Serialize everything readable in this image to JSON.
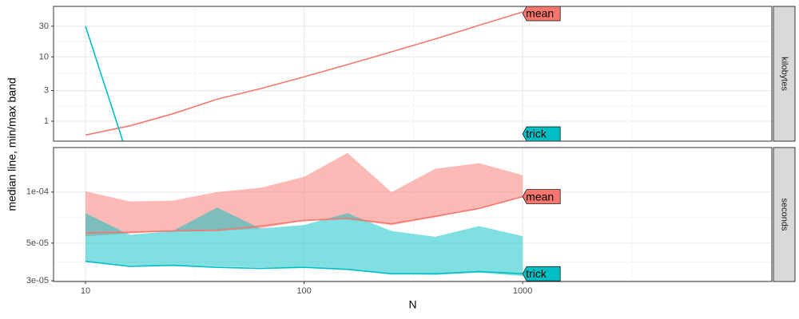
{
  "chart_data": [
    {
      "type": "line",
      "facet": "kilobytes",
      "log_x": true,
      "log_y": true,
      "grid": true,
      "y_label": "median line, min/max band",
      "x": [
        10,
        16,
        25,
        40,
        63,
        100,
        158,
        251,
        398,
        631,
        1000
      ],
      "xlim": [
        7.14,
        13800
      ],
      "xticks": [
        10,
        100,
        1000
      ],
      "ylim": [
        0.49,
        61
      ],
      "yticks": [
        1,
        3,
        10,
        30
      ],
      "series": [
        {
          "name": "mean",
          "color": "#F8766D",
          "values": [
            0.61,
            0.85,
            1.3,
            2.2,
            3.2,
            4.9,
            7.6,
            12,
            19,
            31,
            50
          ]
        },
        {
          "name": "trick",
          "color": "#00BFC4",
          "values": [
            30,
            0.22,
            0.22,
            0.22,
            0.22,
            0.22,
            0.22,
            0.22,
            0.22,
            0.22,
            0.22
          ]
        }
      ]
    },
    {
      "type": "band",
      "facet": "seconds",
      "log_x": true,
      "log_y": true,
      "grid": true,
      "x_label": "N",
      "x": [
        10,
        16,
        25,
        40,
        63,
        100,
        158,
        251,
        398,
        631,
        1000
      ],
      "xlim": [
        7.14,
        13800
      ],
      "xticks": [
        10,
        100,
        1000
      ],
      "ylim": [
        2.97e-05,
        0.000183
      ],
      "yticks": [
        {
          "value": 3e-05,
          "label": "3e-05"
        },
        {
          "value": 5e-05,
          "label": "5e-05"
        },
        {
          "value": 0.0001,
          "label": "1e-04"
        }
      ],
      "series": [
        {
          "name": "mean",
          "color": "#F8766D",
          "values": [
            5.75e-05,
            5.8e-05,
            5.9e-05,
            5.95e-05,
            6.3e-05,
            6.8e-05,
            7e-05,
            6.5e-05,
            7.2e-05,
            8e-05,
            9.4e-05
          ],
          "min": [
            5.5e-05,
            5.7e-05,
            5.9e-05,
            5.9e-05,
            6.1e-05,
            6.8e-05,
            6.9e-05,
            6.4e-05,
            7.1e-05,
            8e-05,
            9.4e-05
          ],
          "max": [
            0.000101,
            8.8e-05,
            8.9e-05,
            0.0001,
            0.000106,
            0.000123,
            0.00017,
            0.0001,
            0.000137,
            0.000148,
            0.000126
          ]
        },
        {
          "name": "trick",
          "color": "#00BFC4",
          "values": [
            3.9e-05,
            3.65e-05,
            3.7e-05,
            3.6e-05,
            3.55e-05,
            3.6e-05,
            3.5e-05,
            3.3e-05,
            3.3e-05,
            3.4e-05,
            3.3e-05
          ],
          "min": [
            3.9e-05,
            3.7e-05,
            3.7e-05,
            3.65e-05,
            3.6e-05,
            3.6e-05,
            3.5e-05,
            3.3e-05,
            3.25e-05,
            3.35e-05,
            3.2e-05
          ],
          "max": [
            7.5e-05,
            5.6e-05,
            5.9e-05,
            8.1e-05,
            6.1e-05,
            6.4e-05,
            7.5e-05,
            5.9e-05,
            5.45e-05,
            6.3e-05,
            5.5e-05
          ]
        }
      ]
    }
  ]
}
